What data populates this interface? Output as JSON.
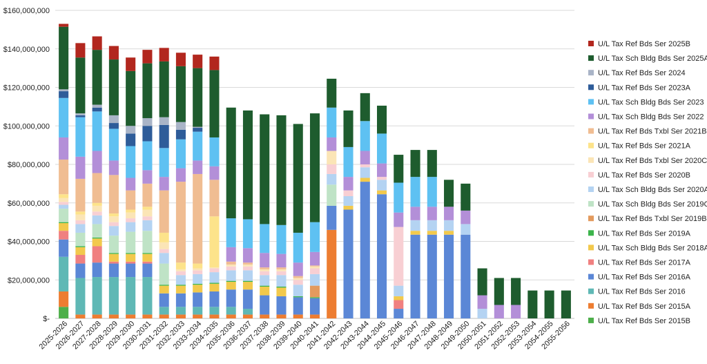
{
  "chart_data": {
    "type": "bar",
    "stacked": true,
    "ylim": [
      0,
      160000000
    ],
    "y_ticks": [
      "$-",
      "$20,000,000",
      "$40,000,000",
      "$60,000,000",
      "$80,000,000",
      "$100,000,000",
      "$120,000,000",
      "$140,000,000",
      "$160,000,000"
    ],
    "grid": true,
    "legend_position": "right",
    "categories": [
      "2025-2026",
      "2026-2027",
      "2027-2028",
      "2028-2029",
      "2029-2030",
      "2030-2031",
      "2031-2032",
      "2032-2033",
      "2033-2034",
      "2034-2035",
      "2035-2036",
      "2036-2037",
      "2037-2038",
      "2038-2039",
      "2039-2040",
      "2040-2041",
      "2041-2042",
      "2042-2043",
      "2043-2044",
      "2044-2045",
      "2045-2046",
      "2046-2047",
      "2047-2048",
      "2048-2049",
      "2049-2050",
      "2050-2051",
      "2051-2052",
      "2052-2053",
      "2053-2054",
      "2054-2055",
      "2055-2056"
    ],
    "series": [
      {
        "name": "U/L Tax Ref Bds Ser 2015B",
        "color": "#4daf4a",
        "values": [
          6000000,
          0,
          0,
          0,
          0,
          0,
          0,
          0,
          0,
          0,
          0,
          0,
          0,
          0,
          0,
          0,
          0,
          0,
          0,
          0,
          0,
          0,
          0,
          0,
          0,
          0,
          0,
          0,
          0,
          0,
          0
        ]
      },
      {
        "name": "U/L Tax Ref Bds Ser 2015A",
        "color": "#ed7d31",
        "values": [
          8000000,
          2000000,
          2000000,
          2000000,
          2000000,
          2000000,
          2000000,
          2000000,
          2000000,
          2000000,
          2000000,
          2000000,
          2000000,
          2000000,
          2000000,
          2000000,
          46000000,
          0,
          0,
          0,
          0,
          0,
          0,
          0,
          0,
          0,
          0,
          0,
          0,
          0,
          0
        ]
      },
      {
        "name": "U/L Tax Ref Bds Ser 2016",
        "color": "#5fb8b5",
        "values": [
          18000000,
          19000000,
          19500000,
          19500000,
          19500000,
          19500000,
          4000000,
          4000000,
          4000000,
          4000000,
          4000000,
          3000000,
          0,
          0,
          0,
          0,
          0,
          0,
          0,
          0,
          0,
          0,
          0,
          0,
          0,
          0,
          0,
          0,
          0,
          0,
          0
        ]
      },
      {
        "name": "U/L Tax Ref Bds Ser 2016A",
        "color": "#5b87d6",
        "values": [
          9000000,
          7500000,
          7500000,
          7000000,
          7000000,
          7000000,
          7000000,
          7000000,
          7500000,
          8000000,
          9000000,
          10000000,
          10000000,
          9500000,
          9000000,
          8500000,
          12500000,
          56500000,
          71000000,
          64500000,
          5000000,
          43500000,
          43500000,
          43500000,
          43500000,
          0,
          0,
          0,
          0,
          0,
          0
        ]
      },
      {
        "name": "U/L Tax Ref Bds Ser 2017A",
        "color": "#f08080",
        "values": [
          4500000,
          4500000,
          8500000,
          1000000,
          1000000,
          1000000,
          0,
          0,
          0,
          0,
          0,
          0,
          0,
          0,
          0,
          0,
          0,
          0,
          0,
          0,
          4500000,
          0,
          0,
          0,
          0,
          0,
          0,
          0,
          0,
          0,
          0
        ]
      },
      {
        "name": "U/L Tax Sch Bldg Bds Ser 2018A",
        "color": "#f2c94c",
        "values": [
          4000000,
          4000000,
          4000000,
          4000000,
          4000000,
          4000000,
          4000000,
          4000000,
          4000000,
          4000000,
          4000000,
          4000000,
          4500000,
          4500000,
          0,
          0,
          0,
          2000000,
          2000000,
          2000000,
          2000000,
          2000000,
          2000000,
          2000000,
          0,
          0,
          0,
          0,
          0,
          0,
          0
        ]
      },
      {
        "name": "U/L Tax Ref Bds Ser 2019A",
        "color": "#3cb44b",
        "values": [
          500000,
          500000,
          500000,
          500000,
          500000,
          500000,
          500000,
          500000,
          500000,
          500000,
          500000,
          500000,
          500000,
          500000,
          500000,
          500000,
          0,
          0,
          0,
          0,
          0,
          0,
          0,
          0,
          0,
          0,
          0,
          0,
          0,
          0,
          0
        ]
      },
      {
        "name": "U/L Tax Ref Bds Txbl Ser 2019B",
        "color": "#e39a5e",
        "values": [
          0,
          0,
          0,
          0,
          0,
          0,
          0,
          0,
          0,
          0,
          0,
          0,
          0,
          0,
          0,
          6000000,
          0,
          0,
          0,
          0,
          0,
          0,
          0,
          0,
          0,
          0,
          0,
          0,
          0,
          0,
          0
        ]
      },
      {
        "name": "U/L Tax Sch Bldg Bds Ser 2019C",
        "color": "#bfe3c6",
        "values": [
          7000000,
          7000000,
          7000000,
          9000000,
          11000000,
          11500000,
          11000000,
          0,
          0,
          0,
          0,
          0,
          0,
          0,
          0,
          0,
          11000000,
          0,
          0,
          0,
          0,
          0,
          0,
          0,
          0,
          0,
          0,
          0,
          0,
          0,
          0
        ]
      },
      {
        "name": "U/L Tax Sch Bldg Bds Ser 2020A",
        "color": "#b4d3f2",
        "values": [
          2000000,
          4500000,
          4500000,
          5000000,
          5000000,
          5500000,
          5500000,
          5000000,
          5000000,
          5500000,
          5500000,
          5500000,
          5500000,
          6000000,
          6000000,
          6000000,
          5500000,
          5000000,
          5500000,
          5500000,
          5500000,
          5500000,
          5500000,
          5500000,
          5500000,
          5000000,
          0,
          0,
          0,
          0,
          0
        ]
      },
      {
        "name": "U/L Tax Ref Bds Ser 2020B",
        "color": "#f8cfd3",
        "values": [
          1500000,
          2000000,
          2000000,
          2000000,
          2000000,
          2000000,
          2000000,
          2000000,
          2000000,
          2000000,
          2000000,
          2000000,
          2000000,
          2000000,
          2500000,
          3000000,
          5000000,
          3000000,
          1500000,
          1500000,
          30500000,
          0,
          0,
          0,
          0,
          0,
          0,
          0,
          0,
          0,
          0
        ]
      },
      {
        "name": "U/L Tax Ref Bds Txbl Ser 2020C",
        "color": "#fbe5b6",
        "values": [
          2000000,
          3000000,
          3000000,
          3000000,
          3000000,
          3500000,
          3500000,
          1000000,
          1000000,
          500000,
          1000000,
          1000000,
          1000000,
          1000000,
          1000000,
          1000000,
          7000000,
          0,
          0,
          0,
          0,
          0,
          0,
          0,
          0,
          0,
          0,
          0,
          0,
          0,
          0
        ]
      },
      {
        "name": "U/L Tax Ref Bds Ser 2021A",
        "color": "#fde38a",
        "values": [
          2000000,
          1500000,
          1500000,
          1500000,
          1500000,
          1500000,
          5000000,
          3500000,
          2500000,
          26500000,
          0,
          0,
          0,
          0,
          0,
          0,
          0,
          0,
          0,
          0,
          0,
          0,
          0,
          0,
          0,
          0,
          0,
          0,
          0,
          0,
          0
        ]
      },
      {
        "name": "U/L Tax Ref Bds Txbl Ser 2021B",
        "color": "#f0bd92",
        "values": [
          18000000,
          17000000,
          15500000,
          20000000,
          10000000,
          12000000,
          22000000,
          42000000,
          46500000,
          19000000,
          1500000,
          1000000,
          1000000,
          1000000,
          1000000,
          500000,
          0,
          0,
          0,
          0,
          0,
          0,
          0,
          0,
          0,
          0,
          0,
          0,
          0,
          0,
          0
        ]
      },
      {
        "name": "U/L Tax Sch Bldg Bds Ser 2022",
        "color": "#b38fd8",
        "values": [
          11500000,
          11500000,
          11500000,
          7500000,
          6500000,
          7000000,
          7000000,
          7000000,
          7000000,
          7000000,
          7500000,
          7500000,
          7500000,
          7000000,
          7000000,
          7000000,
          7000000,
          7000000,
          7000000,
          7000000,
          7500000,
          7000000,
          7000000,
          7000000,
          7000000,
          7000000,
          7000000,
          7000000,
          0,
          0,
          0
        ]
      },
      {
        "name": "U/L Tax Sch Bldg Bds Ser 2023",
        "color": "#5ec1f2",
        "values": [
          20500000,
          20500000,
          20500000,
          16500000,
          16500000,
          15000000,
          15000000,
          15000000,
          15000000,
          15000000,
          15000000,
          15000000,
          15000000,
          15000000,
          15500000,
          15500000,
          15500000,
          15500000,
          15500000,
          15500000,
          15500000,
          15500000,
          15500000,
          0,
          0,
          0,
          0,
          0,
          0,
          0,
          0
        ]
      },
      {
        "name": "U/L Tax Ref Bds Ser 2023A",
        "color": "#2e5c99",
        "values": [
          3500000,
          1000000,
          2000000,
          3000000,
          6500000,
          8000000,
          12000000,
          5000000,
          2000000,
          0,
          0,
          0,
          0,
          0,
          0,
          0,
          0,
          0,
          0,
          0,
          0,
          0,
          0,
          0,
          0,
          0,
          0,
          0,
          0,
          0,
          0
        ]
      },
      {
        "name": "U/L Tax Ref Bds Ser 2024",
        "color": "#a9b4c7",
        "values": [
          1000000,
          1000000,
          1500000,
          4000000,
          4000000,
          4000000,
          4000000,
          4000000,
          500000,
          0,
          0,
          0,
          0,
          0,
          0,
          0,
          0,
          0,
          0,
          0,
          0,
          0,
          0,
          0,
          0,
          0,
          0,
          0,
          0,
          0,
          0
        ]
      },
      {
        "name": "U/L Tax Sch Bldg Bds Ser 2025A",
        "color": "#1e5c2e",
        "values": [
          32500000,
          29000000,
          28500000,
          29000000,
          28500000,
          28500000,
          29000000,
          29000000,
          30500000,
          35000000,
          57500000,
          56500000,
          57000000,
          57000000,
          56500000,
          56500000,
          15000000,
          19000000,
          14500000,
          14500000,
          14500000,
          14000000,
          14000000,
          14000000,
          14000000,
          14000000,
          14000000,
          14000000,
          14500000,
          14500000,
          14500000
        ]
      },
      {
        "name": "U/L Tax Ref Bds Ser 2025B",
        "color": "#b2271e",
        "values": [
          1500000,
          7500000,
          7000000,
          7000000,
          7000000,
          7000000,
          7000000,
          7000000,
          7000000,
          7000000,
          0,
          0,
          0,
          0,
          0,
          0,
          0,
          0,
          0,
          0,
          0,
          0,
          0,
          0,
          0,
          0,
          0,
          0,
          0,
          0,
          0
        ]
      }
    ]
  }
}
